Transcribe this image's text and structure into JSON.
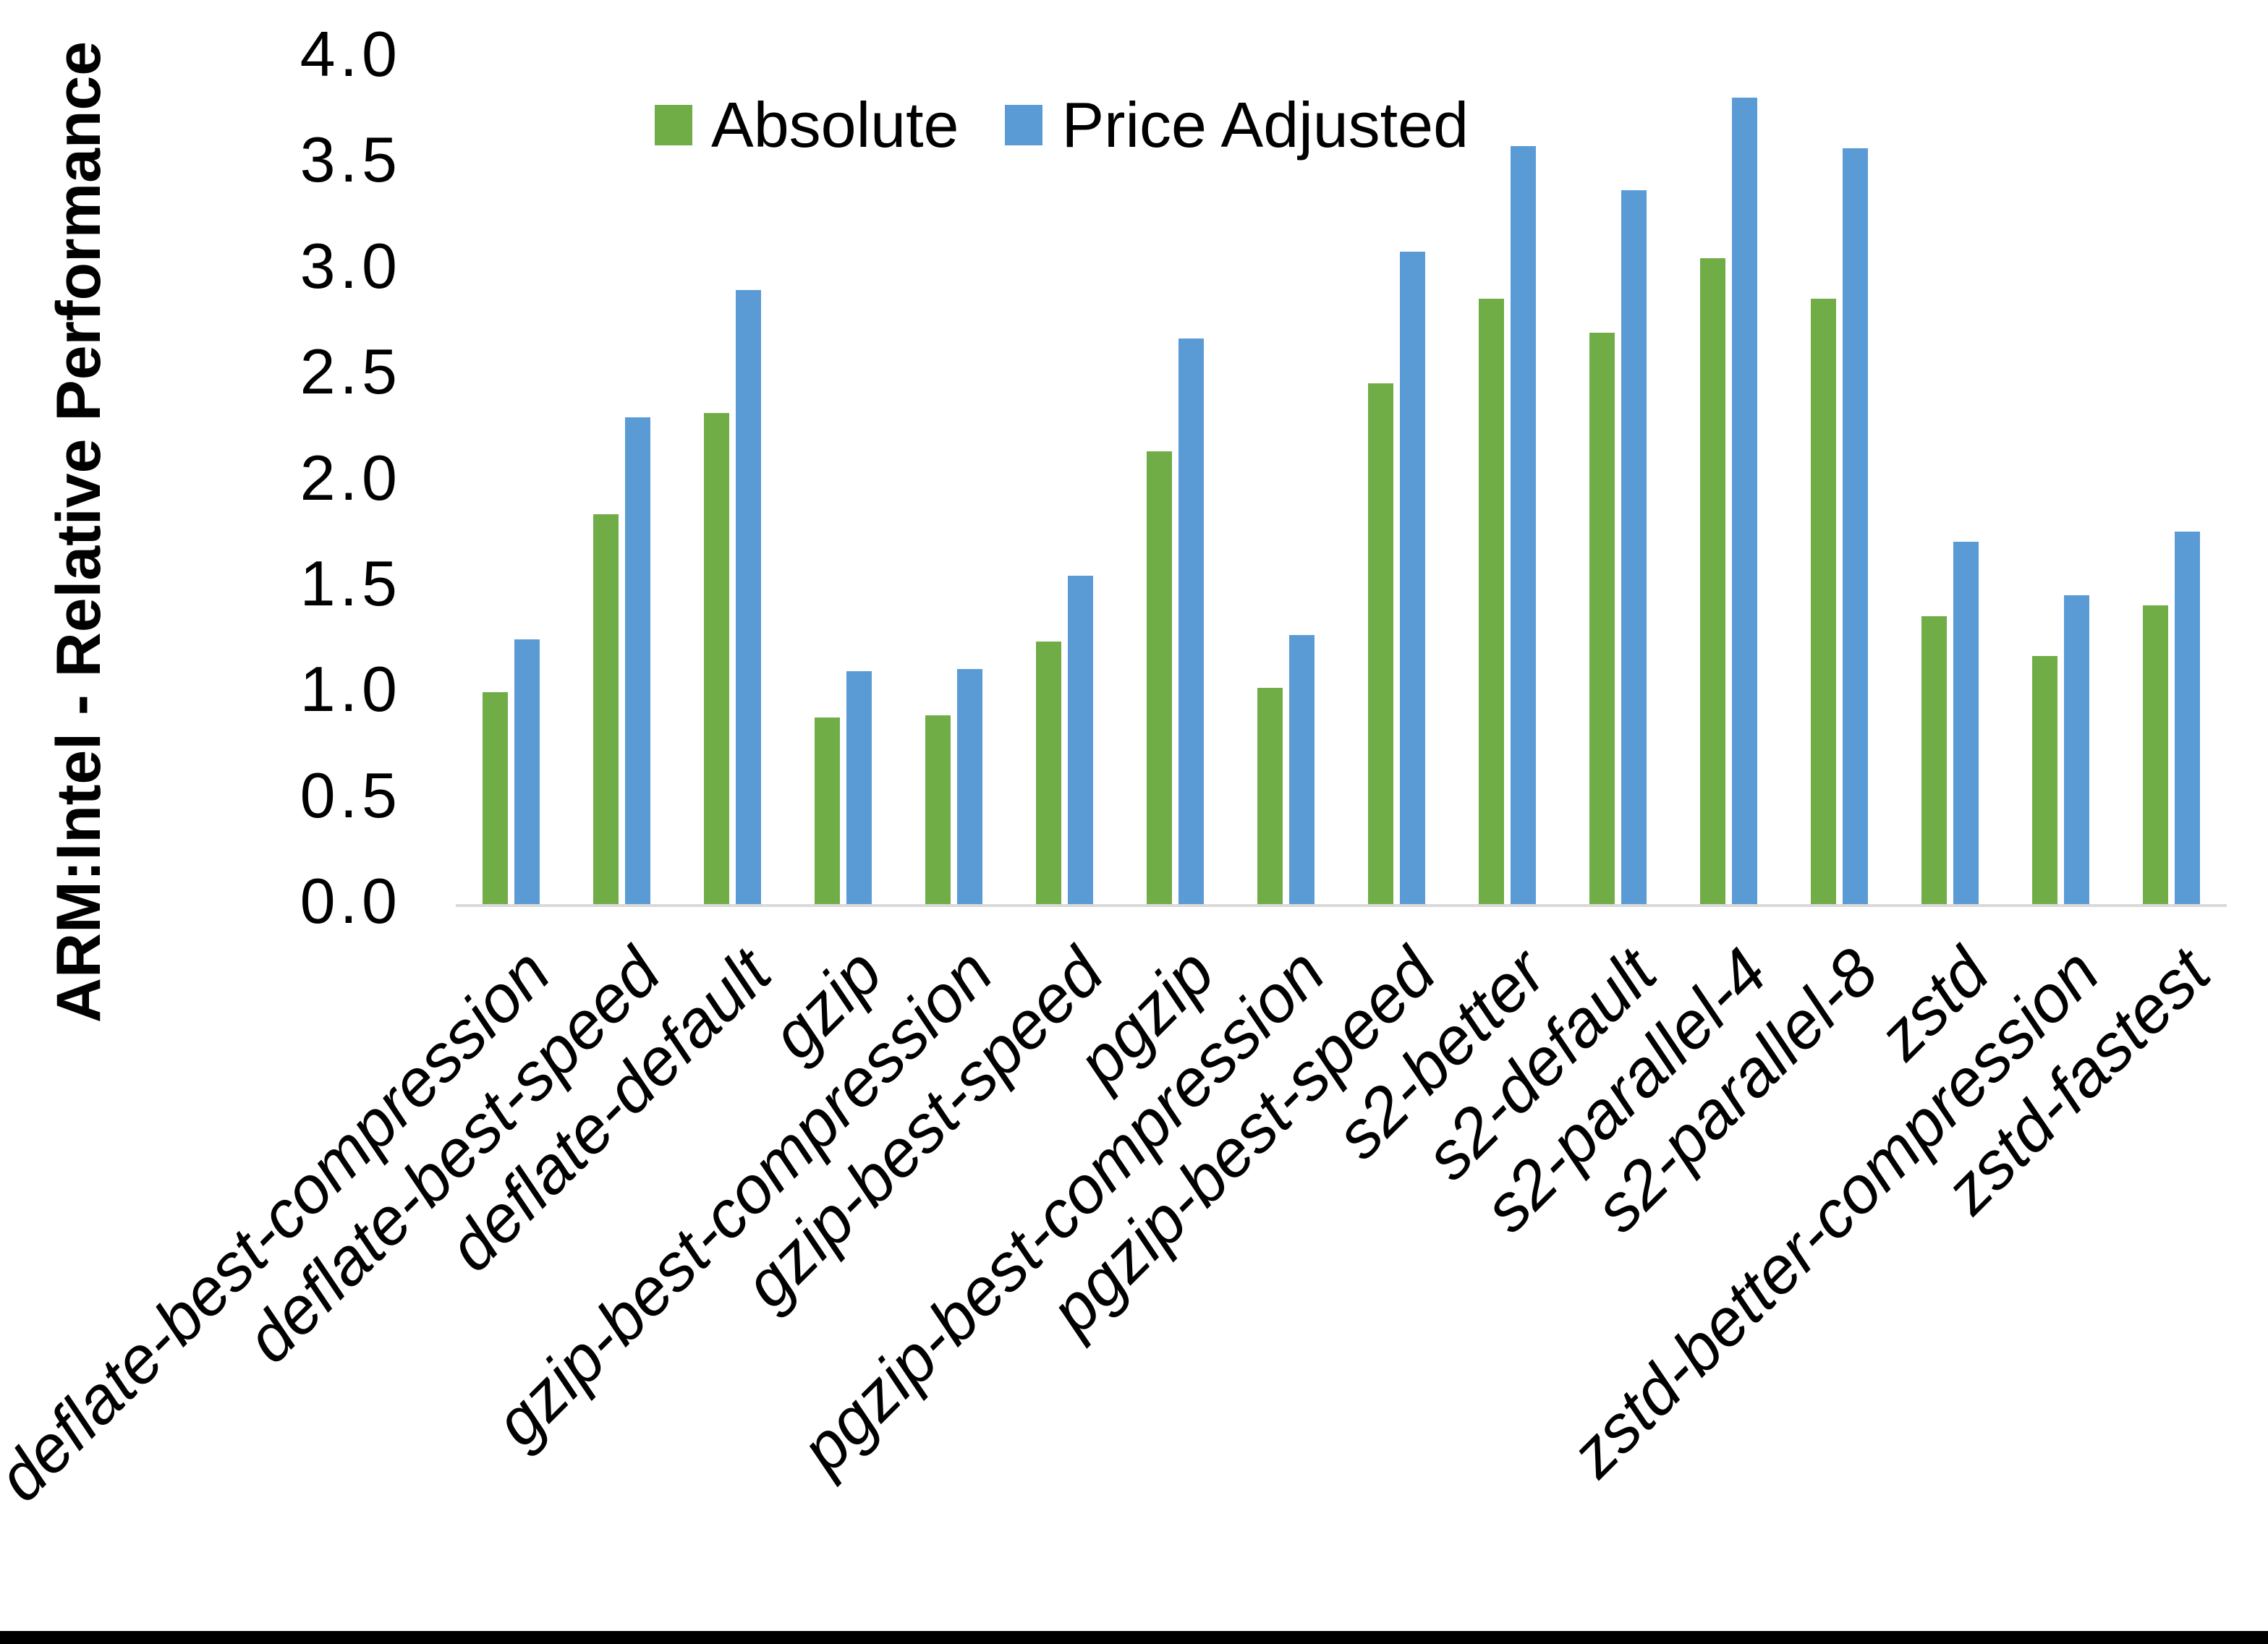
{
  "chart_data": {
    "type": "bar",
    "title": "",
    "ylabel": "ARM:Intel - Relative Performance",
    "xlabel": "",
    "ylim": [
      0.0,
      4.0
    ],
    "ytick_labels": [
      "4.0",
      "3.5",
      "3.0",
      "2.5",
      "2.0",
      "1.5",
      "1.0",
      "0.5",
      "0.0"
    ],
    "grid": false,
    "legend_position": "top-center",
    "categories": [
      "deflate-best-compression",
      "deflate-best-speed",
      "deflate-default",
      "gzip",
      "gzip-best-compression",
      "gzip-best-speed",
      "pgzip",
      "pgzip-best-compression",
      "pgzip-best-speed",
      "s2-better",
      "s2-default",
      "s2-parallel-4",
      "s2-parallel-8",
      "zstd",
      "zstd-better-compression",
      "zstd-fastest"
    ],
    "series": [
      {
        "name": "Absolute",
        "color": "#70AD47",
        "values": [
          1.0,
          1.84,
          2.32,
          0.88,
          0.89,
          1.24,
          2.14,
          1.02,
          2.46,
          2.86,
          2.7,
          3.05,
          2.86,
          1.36,
          1.17,
          1.41
        ]
      },
      {
        "name": "Price Adjusted",
        "color": "#5B9BD5",
        "values": [
          1.25,
          2.3,
          2.9,
          1.1,
          1.11,
          1.55,
          2.67,
          1.27,
          3.08,
          3.58,
          3.37,
          3.81,
          3.57,
          1.71,
          1.46,
          1.76
        ]
      }
    ]
  },
  "colors": {
    "axis_line": "#D9D9D9",
    "label_text": "#000000",
    "bottom_bar": "#000000",
    "background": "#FFFFFF"
  }
}
